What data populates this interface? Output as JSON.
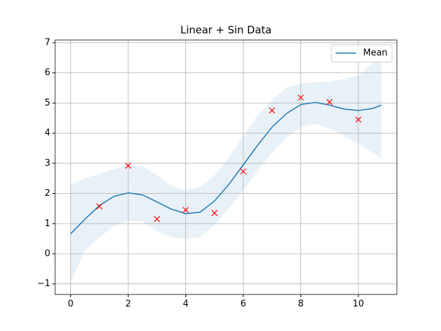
{
  "chart_data": {
    "type": "line",
    "title": "Linear + Sin Data",
    "x": [
      0,
      0.5,
      1,
      1.5,
      2,
      2.5,
      3,
      3.5,
      4,
      4.5,
      5,
      5.5,
      6,
      6.5,
      7,
      7.5,
      8,
      8.5,
      9,
      9.5,
      10,
      10.5,
      10.8
    ],
    "series": [
      {
        "name": "Mean",
        "color": "#1f77b4",
        "values": [
          0.66,
          1.15,
          1.6,
          1.9,
          2.02,
          1.95,
          1.72,
          1.48,
          1.33,
          1.38,
          1.75,
          2.3,
          2.95,
          3.6,
          4.2,
          4.65,
          4.95,
          5.02,
          4.93,
          4.8,
          4.75,
          4.82,
          4.93
        ]
      }
    ],
    "band": {
      "color": "#1f77b4",
      "upper": [
        2.3,
        2.5,
        2.65,
        2.8,
        2.95,
        2.9,
        2.6,
        2.25,
        2.1,
        2.2,
        2.6,
        3.2,
        3.9,
        4.6,
        5.1,
        5.5,
        5.65,
        5.7,
        5.7,
        5.8,
        5.9,
        6.3,
        6.5
      ],
      "lower": [
        -0.95,
        0.1,
        0.55,
        0.9,
        1.1,
        1.05,
        0.75,
        0.55,
        0.5,
        0.55,
        0.95,
        1.5,
        2.1,
        2.75,
        3.35,
        3.85,
        4.2,
        4.3,
        4.15,
        3.9,
        3.65,
        3.35,
        3.15
      ]
    },
    "points": {
      "color": "#ff0000",
      "marker": "x",
      "x": [
        1,
        2,
        3,
        4,
        5,
        6,
        7,
        8,
        9,
        10
      ],
      "y": [
        1.57,
        2.92,
        1.15,
        1.45,
        1.35,
        2.73,
        4.75,
        5.18,
        5.03,
        4.45
      ]
    },
    "xlim": [
      -0.54,
      11.34
    ],
    "ylim": [
      -1.35,
      7.09
    ],
    "xticks": [
      0,
      2,
      4,
      6,
      8,
      10
    ],
    "yticks": [
      {
        "value": -1,
        "label": "−1"
      },
      0,
      1,
      2,
      3,
      4,
      5,
      6,
      7
    ],
    "grid": true,
    "legend": "upper right"
  }
}
